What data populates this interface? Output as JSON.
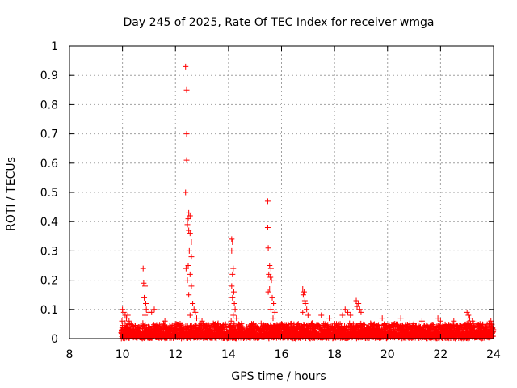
{
  "chart_data": {
    "type": "scatter",
    "title": "Day 245 of 2025, Rate Of TEC Index for receiver wmga",
    "xlabel": "GPS time / hours",
    "ylabel": "ROTI / TECUs",
    "xlim": [
      8,
      24
    ],
    "ylim": [
      0,
      1
    ],
    "xticks": [
      8,
      10,
      12,
      14,
      16,
      18,
      20,
      22,
      24
    ],
    "yticks": [
      0,
      0.1,
      0.2,
      0.3,
      0.4,
      0.5,
      0.6,
      0.7,
      0.8,
      0.9,
      1
    ],
    "xtick_labels": [
      "8",
      "10",
      "12",
      "14",
      "16",
      "18",
      "20",
      "22",
      "24"
    ],
    "ytick_labels": [
      "0",
      "0.1",
      "0.2",
      "0.3",
      "0.4",
      "0.5",
      "0.6",
      "0.7",
      "0.8",
      "0.9",
      "1"
    ],
    "grid": true,
    "marker": "+",
    "color": "#ff0000",
    "data_range_x": [
      9.95,
      24
    ],
    "baseline_max_y": 0.05,
    "series": [
      {
        "name": "ROTI",
        "points": [
          [
            12.38,
            0.93
          ],
          [
            12.42,
            0.85
          ],
          [
            12.42,
            0.7
          ],
          [
            12.42,
            0.61
          ],
          [
            12.38,
            0.5
          ],
          [
            12.5,
            0.43
          ],
          [
            12.55,
            0.42
          ],
          [
            12.48,
            0.41
          ],
          [
            12.45,
            0.39
          ],
          [
            12.5,
            0.37
          ],
          [
            12.55,
            0.36
          ],
          [
            12.6,
            0.33
          ],
          [
            12.52,
            0.3
          ],
          [
            12.6,
            0.28
          ],
          [
            12.48,
            0.25
          ],
          [
            12.4,
            0.24
          ],
          [
            12.55,
            0.22
          ],
          [
            12.45,
            0.2
          ],
          [
            12.6,
            0.18
          ],
          [
            12.5,
            0.15
          ],
          [
            12.65,
            0.12
          ],
          [
            12.7,
            0.1
          ],
          [
            12.75,
            0.09
          ],
          [
            12.55,
            0.08
          ],
          [
            12.8,
            0.07
          ],
          [
            15.48,
            0.47
          ],
          [
            15.48,
            0.38
          ],
          [
            15.5,
            0.31
          ],
          [
            15.55,
            0.25
          ],
          [
            15.6,
            0.24
          ],
          [
            15.52,
            0.22
          ],
          [
            15.58,
            0.21
          ],
          [
            15.62,
            0.2
          ],
          [
            15.55,
            0.17
          ],
          [
            15.5,
            0.16
          ],
          [
            15.65,
            0.14
          ],
          [
            15.7,
            0.12
          ],
          [
            15.6,
            0.1
          ],
          [
            15.75,
            0.09
          ],
          [
            15.68,
            0.07
          ],
          [
            14.12,
            0.34
          ],
          [
            14.15,
            0.33
          ],
          [
            14.12,
            0.3
          ],
          [
            14.18,
            0.24
          ],
          [
            14.15,
            0.22
          ],
          [
            14.12,
            0.18
          ],
          [
            14.2,
            0.16
          ],
          [
            14.15,
            0.14
          ],
          [
            14.22,
            0.12
          ],
          [
            14.25,
            0.1
          ],
          [
            14.18,
            0.08
          ],
          [
            14.3,
            0.07
          ],
          [
            14.1,
            0.06
          ],
          [
            10.78,
            0.24
          ],
          [
            10.8,
            0.19
          ],
          [
            10.85,
            0.18
          ],
          [
            10.82,
            0.14
          ],
          [
            10.88,
            0.12
          ],
          [
            10.9,
            0.1
          ],
          [
            10.85,
            0.08
          ],
          [
            11.0,
            0.09
          ],
          [
            11.1,
            0.09
          ],
          [
            11.2,
            0.1
          ],
          [
            16.8,
            0.17
          ],
          [
            16.85,
            0.16
          ],
          [
            16.82,
            0.15
          ],
          [
            16.88,
            0.13
          ],
          [
            16.9,
            0.12
          ],
          [
            16.95,
            0.1
          ],
          [
            16.8,
            0.09
          ],
          [
            17.0,
            0.08
          ],
          [
            18.82,
            0.13
          ],
          [
            18.9,
            0.12
          ],
          [
            18.85,
            0.11
          ],
          [
            18.95,
            0.1
          ],
          [
            19.0,
            0.09
          ],
          [
            18.4,
            0.1
          ],
          [
            18.5,
            0.09
          ],
          [
            18.3,
            0.08
          ],
          [
            18.6,
            0.08
          ],
          [
            10.0,
            0.1
          ],
          [
            10.05,
            0.09
          ],
          [
            10.1,
            0.08
          ],
          [
            10.15,
            0.07
          ],
          [
            10.2,
            0.08
          ],
          [
            9.98,
            0.06
          ],
          [
            10.25,
            0.06
          ],
          [
            17.5,
            0.08
          ],
          [
            17.8,
            0.07
          ],
          [
            19.8,
            0.07
          ],
          [
            20.5,
            0.07
          ],
          [
            21.3,
            0.06
          ],
          [
            21.9,
            0.07
          ],
          [
            22.0,
            0.06
          ],
          [
            22.5,
            0.06
          ],
          [
            23.0,
            0.09
          ],
          [
            23.05,
            0.08
          ],
          [
            23.1,
            0.07
          ],
          [
            23.9,
            0.06
          ],
          [
            23.85,
            0.05
          ],
          [
            23.2,
            0.06
          ],
          [
            13.0,
            0.06
          ],
          [
            13.5,
            0.05
          ],
          [
            11.6,
            0.06
          ],
          [
            12.0,
            0.05
          ]
        ]
      }
    ]
  }
}
